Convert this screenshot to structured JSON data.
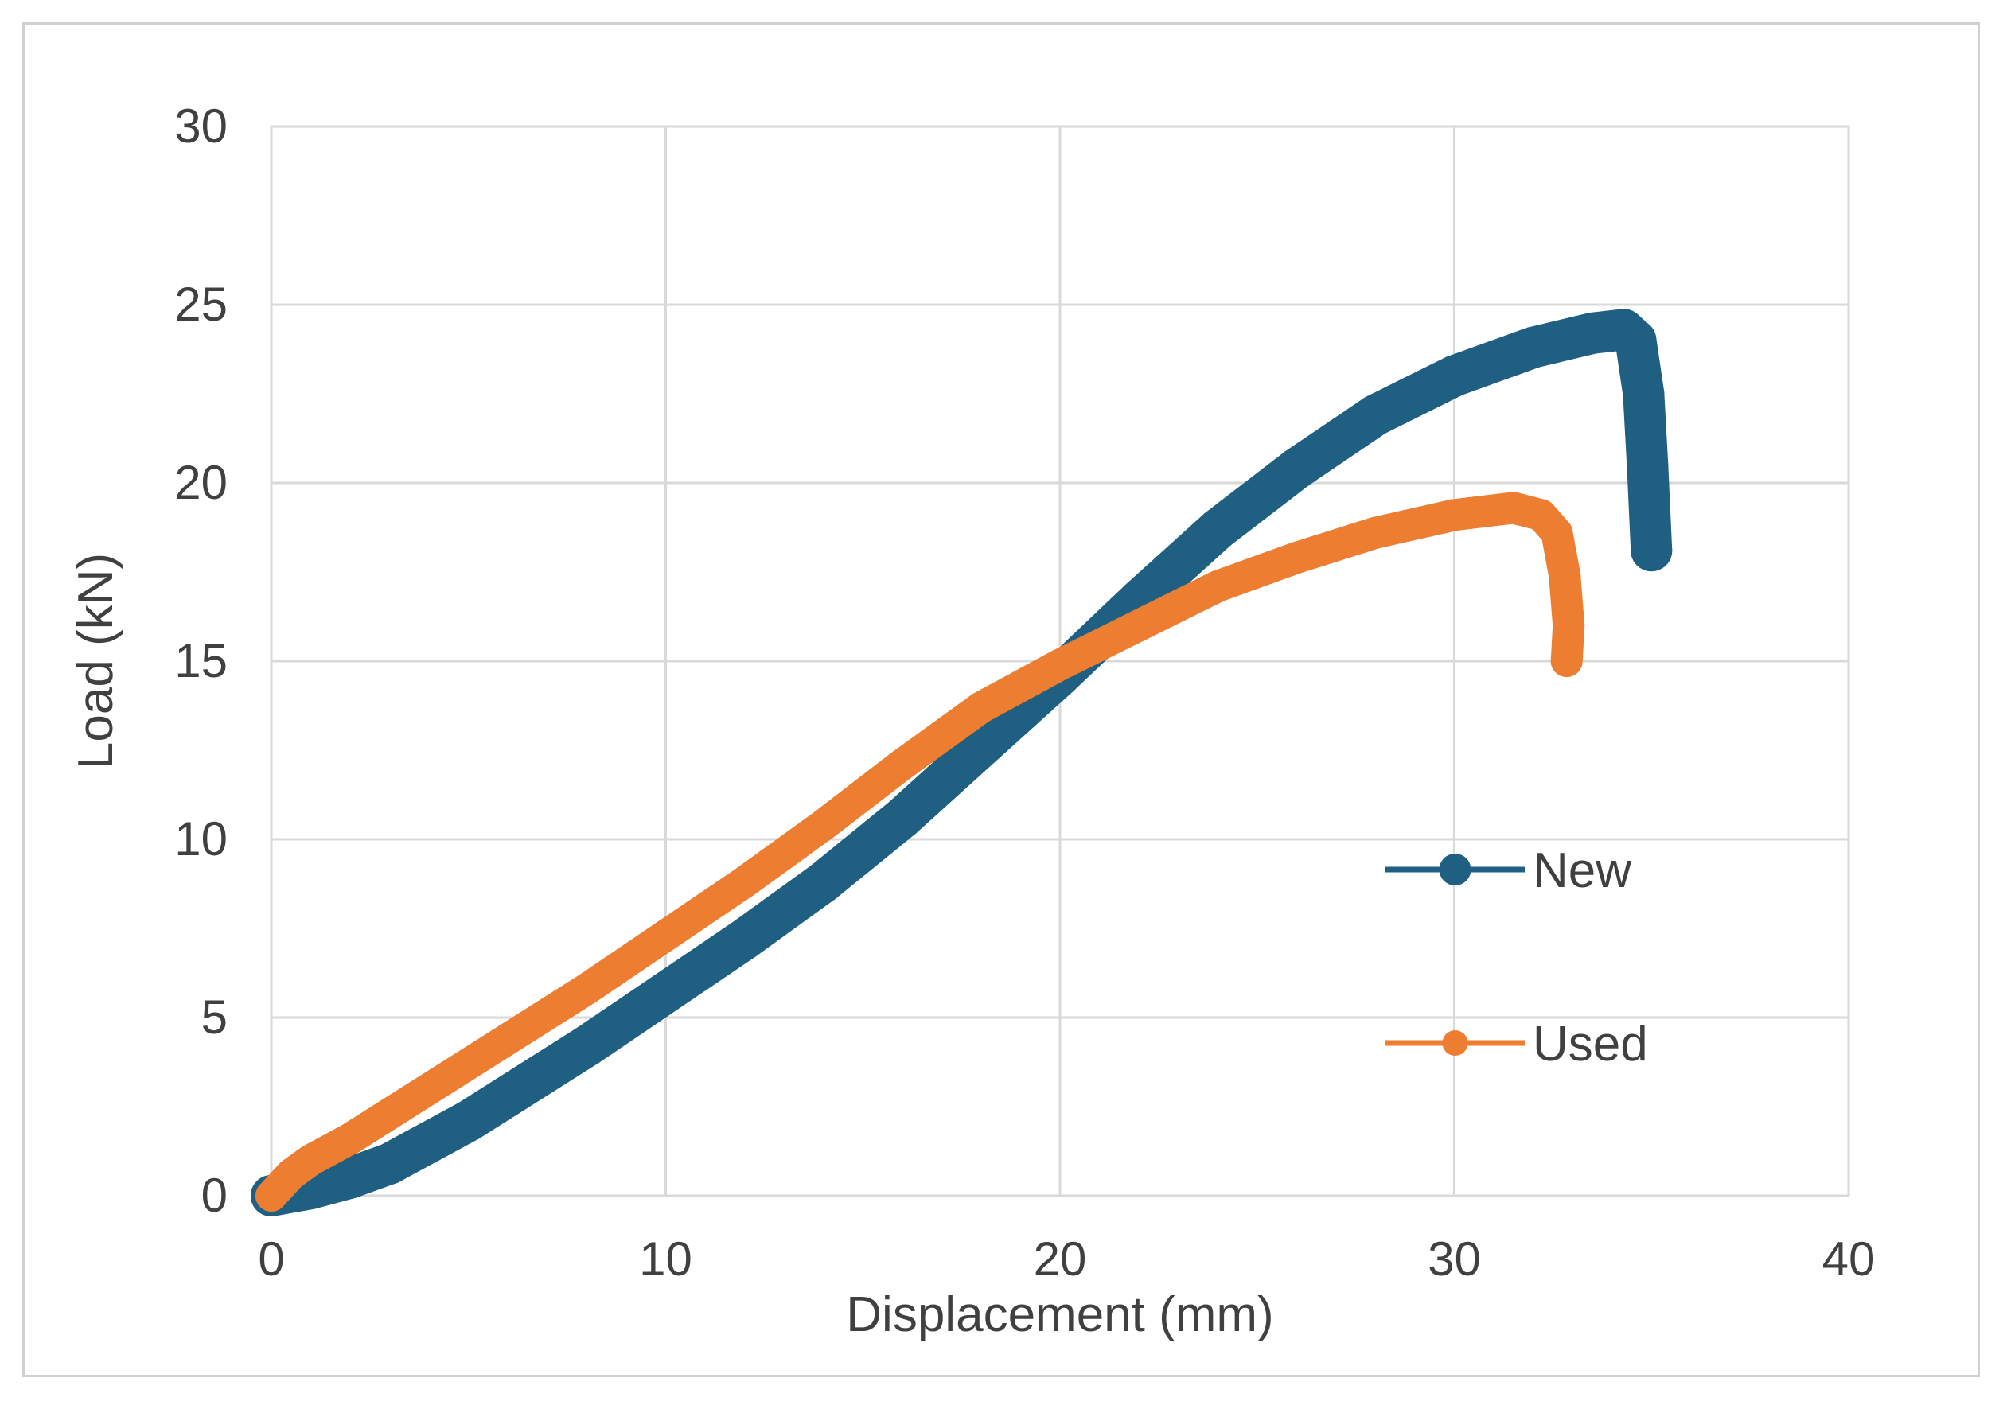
{
  "chart_data": {
    "type": "scatter",
    "title": "",
    "xlabel": "Displacement (mm)",
    "ylabel": "Load (kN)",
    "xlim": [
      0,
      40
    ],
    "ylim": [
      0,
      30
    ],
    "xticks": [
      0,
      10,
      20,
      30,
      40
    ],
    "yticks": [
      0,
      5,
      10,
      15,
      20,
      25,
      30
    ],
    "grid": true,
    "legend_position": "bottom-right",
    "series": [
      {
        "name": "New",
        "color": "#1f5f82",
        "marker": "circle",
        "x": [
          0,
          1,
          2,
          3,
          4,
          5,
          6,
          8,
          10,
          12,
          14,
          16,
          18,
          20,
          22,
          24,
          26,
          28,
          30,
          32,
          33.5,
          34.3,
          34.6,
          34.8,
          34.9,
          35.0
        ],
        "y": [
          0,
          0.2,
          0.5,
          0.9,
          1.5,
          2.1,
          2.8,
          4.2,
          5.7,
          7.2,
          8.8,
          10.6,
          12.6,
          14.6,
          16.7,
          18.7,
          20.4,
          21.9,
          23.0,
          23.8,
          24.2,
          24.3,
          24.0,
          22.5,
          20.5,
          18.1
        ]
      },
      {
        "name": "Used",
        "color": "#ed7d31",
        "marker": "circle",
        "x": [
          0,
          0.5,
          1,
          2,
          4,
          6,
          8,
          10,
          12,
          14,
          16,
          18,
          20,
          22,
          24,
          26,
          28,
          30,
          31.5,
          32.2,
          32.6,
          32.8,
          32.9,
          32.85
        ],
        "y": [
          0,
          0.6,
          1.0,
          1.6,
          3.0,
          4.4,
          5.8,
          7.3,
          8.8,
          10.4,
          12.1,
          13.7,
          14.9,
          16.0,
          17.1,
          17.9,
          18.6,
          19.1,
          19.3,
          19.1,
          18.6,
          17.4,
          16.0,
          15.0
        ]
      }
    ]
  }
}
